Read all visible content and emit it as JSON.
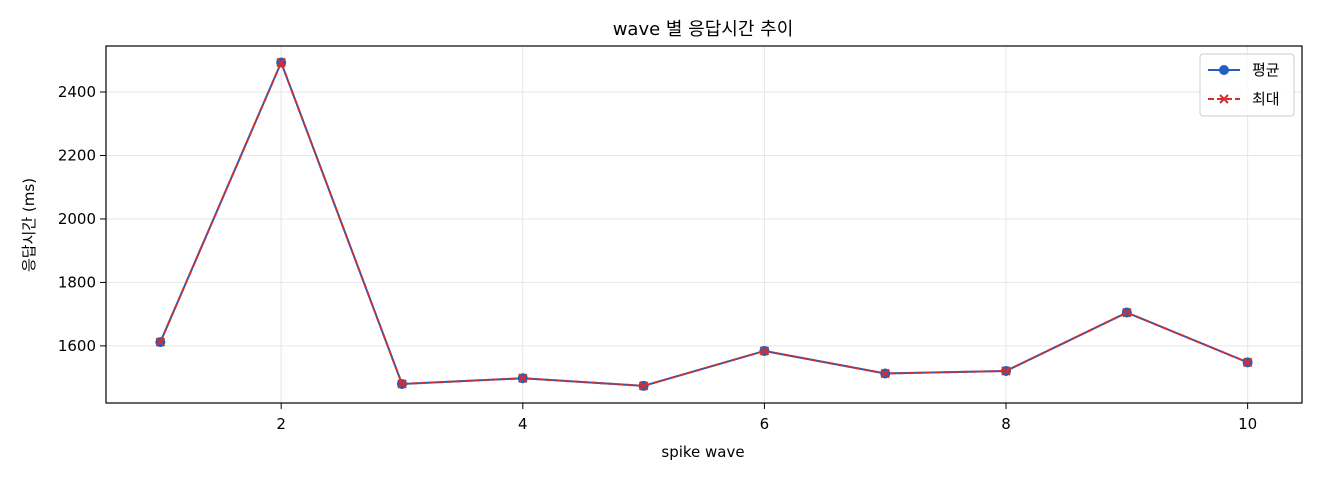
{
  "chart_data": {
    "type": "line",
    "title": "wave 별 응답시간 추이",
    "xlabel": "spike wave",
    "ylabel": "응답시간 (ms)",
    "x": [
      1,
      2,
      3,
      4,
      5,
      6,
      7,
      8,
      9,
      10
    ],
    "xticks": [
      2,
      4,
      6,
      8,
      10
    ],
    "yticks": [
      1600,
      1800,
      2000,
      2200,
      2400
    ],
    "xlim": [
      0.55,
      10.45
    ],
    "ylim": [
      1420,
      2545
    ],
    "grid": true,
    "legend_position": "top-right",
    "series": [
      {
        "name": "평균",
        "color": "#1f5fbf",
        "marker": "circle",
        "linestyle": "solid",
        "values": [
          1612,
          2493,
          1480,
          1498,
          1474,
          1584,
          1513,
          1521,
          1705,
          1548
        ]
      },
      {
        "name": "최대",
        "color": "#d03030",
        "marker": "x",
        "linestyle": "dashed",
        "values": [
          1612,
          2493,
          1480,
          1498,
          1474,
          1584,
          1513,
          1521,
          1705,
          1548
        ]
      }
    ]
  }
}
